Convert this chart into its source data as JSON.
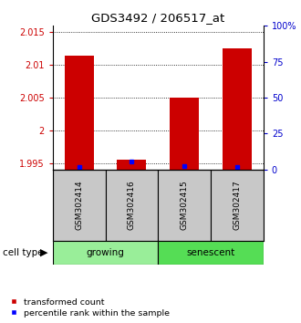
{
  "title": "GDS3492 / 206517_at",
  "samples": [
    "GSM302414",
    "GSM302416",
    "GSM302415",
    "GSM302417"
  ],
  "red_bars": [
    2.0115,
    1.9955,
    2.005,
    2.0125
  ],
  "blue_pct": [
    2.0,
    5.5,
    2.5,
    2.0
  ],
  "ylim_left": [
    1.994,
    2.016
  ],
  "yticks_left": [
    1.995,
    2.0,
    2.005,
    2.01,
    2.015
  ],
  "ytick_labels_left": [
    "1.995",
    "2",
    "2.005",
    "2.01",
    "2.015"
  ],
  "ylim_right": [
    0,
    100
  ],
  "yticks_right": [
    0,
    25,
    50,
    75,
    100
  ],
  "ytick_labels_right": [
    "0",
    "25",
    "50",
    "75",
    "100%"
  ],
  "left_color": "#cc0000",
  "right_color": "#0000cc",
  "bar_width": 0.55,
  "growing_color": "#99ee99",
  "senescent_color": "#55dd55",
  "label_bg": "#c8c8c8",
  "legend_red": "transformed count",
  "legend_blue": "percentile rank within the sample"
}
